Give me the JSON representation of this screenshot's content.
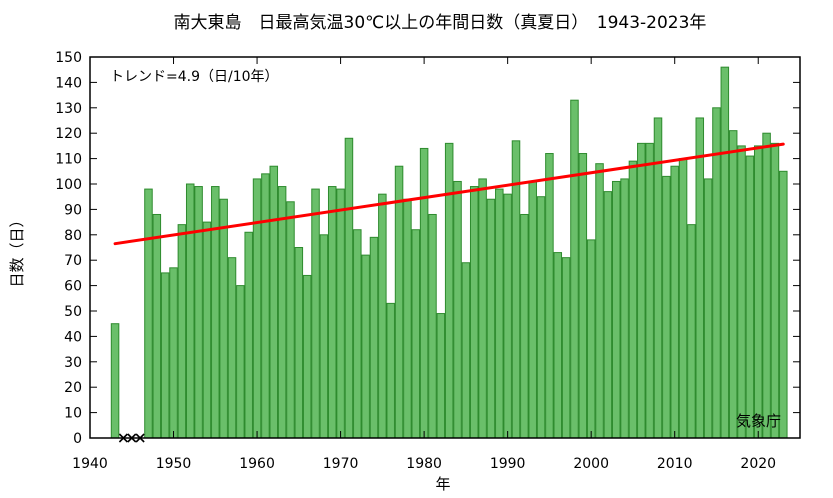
{
  "chart_data": {
    "type": "bar",
    "title": "南大東島　日最高気温30℃以上の年間日数（真夏日）　1943-2023年",
    "xlabel": "年",
    "ylabel": "日数（日）",
    "xlim": [
      1940,
      2025
    ],
    "ylim": [
      0,
      150
    ],
    "xticks": [
      1940,
      1950,
      1960,
      1970,
      1980,
      1990,
      2000,
      2010,
      2020
    ],
    "yticks": [
      0,
      10,
      20,
      30,
      40,
      50,
      60,
      70,
      80,
      90,
      100,
      110,
      120,
      130,
      140,
      150
    ],
    "x": [
      1943,
      1944,
      1945,
      1946,
      1947,
      1948,
      1949,
      1950,
      1951,
      1952,
      1953,
      1954,
      1955,
      1956,
      1957,
      1958,
      1959,
      1960,
      1961,
      1962,
      1963,
      1964,
      1965,
      1966,
      1967,
      1968,
      1969,
      1970,
      1971,
      1972,
      1973,
      1974,
      1975,
      1976,
      1977,
      1978,
      1979,
      1980,
      1981,
      1982,
      1983,
      1984,
      1985,
      1986,
      1987,
      1988,
      1989,
      1990,
      1991,
      1992,
      1993,
      1994,
      1995,
      1996,
      1997,
      1998,
      1999,
      2000,
      2001,
      2002,
      2003,
      2004,
      2005,
      2006,
      2007,
      2008,
      2009,
      2010,
      2011,
      2012,
      2013,
      2014,
      2015,
      2016,
      2017,
      2018,
      2019,
      2020,
      2021,
      2022,
      2023
    ],
    "values": [
      45,
      null,
      null,
      null,
      98,
      88,
      65,
      67,
      84,
      100,
      99,
      85,
      99,
      94,
      71,
      60,
      81,
      102,
      104,
      107,
      99,
      93,
      75,
      64,
      98,
      80,
      99,
      98,
      118,
      82,
      72,
      79,
      96,
      53,
      107,
      94,
      82,
      114,
      88,
      49,
      116,
      101,
      69,
      99,
      102,
      94,
      98,
      96,
      117,
      88,
      101,
      95,
      112,
      73,
      71,
      133,
      112,
      78,
      108,
      97,
      101,
      102,
      109,
      116,
      116,
      126,
      103,
      107,
      110,
      84,
      126,
      102,
      130,
      146,
      121,
      115,
      111,
      115,
      120,
      116,
      105
    ],
    "trend": {
      "label": "トレンド=4.9（日/10年）",
      "x": [
        1943,
        2023
      ],
      "y": [
        76.5,
        115.7
      ]
    },
    "grid": false,
    "legend": "none",
    "colors": {
      "bar_fill": "#6abf6a",
      "bar_edge": "#2e8b2e",
      "trend": "#ff0000",
      "missing_mark": "#000000"
    }
  },
  "credit": "気象庁"
}
